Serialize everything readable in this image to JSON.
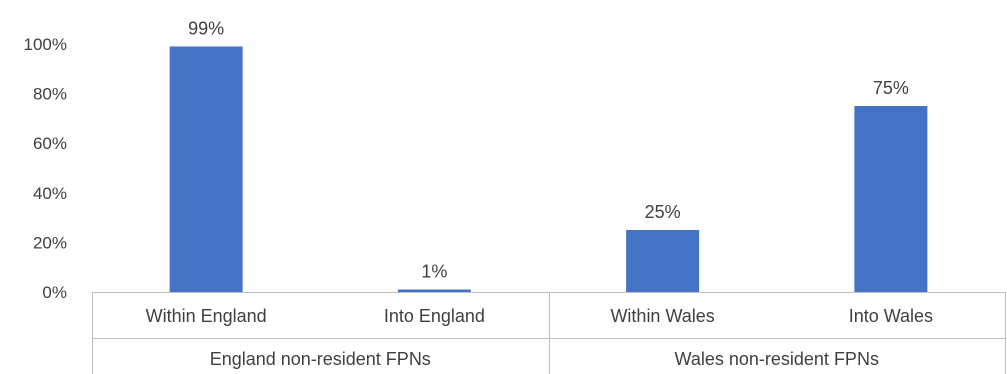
{
  "chart_data": {
    "type": "bar",
    "groups": [
      {
        "label": "England non-resident FPNs",
        "categories": [
          "Within England",
          "Into England"
        ]
      },
      {
        "label": "Wales non-resident FPNs",
        "categories": [
          "Within Wales",
          "Into Wales"
        ]
      }
    ],
    "categories": [
      "Within England",
      "Into England",
      "Within Wales",
      "Into Wales"
    ],
    "values": [
      99,
      1,
      25,
      75
    ],
    "data_labels": [
      "99%",
      "1%",
      "25%",
      "75%"
    ],
    "y_ticks": [
      "0%",
      "20%",
      "40%",
      "60%",
      "80%",
      "100%"
    ],
    "ylim": [
      0,
      100
    ],
    "grid": false,
    "legend": "none",
    "colors": {
      "bar": "#4472c4",
      "axis": "#bfbfbf",
      "text": "#404040"
    }
  }
}
